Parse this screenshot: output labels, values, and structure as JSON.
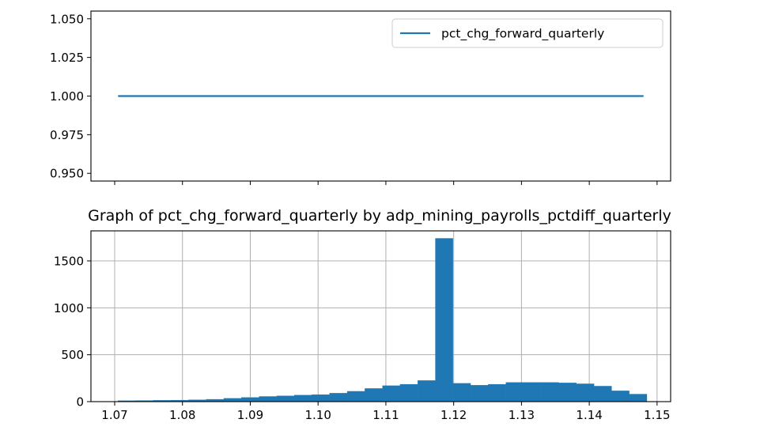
{
  "chart_data": [
    {
      "type": "line",
      "title": "",
      "xlabel": "",
      "ylabel": "",
      "x": [
        1.0705,
        1.148
      ],
      "xlim": [
        1.0665,
        1.152
      ],
      "ylim": [
        0.945,
        1.055
      ],
      "yticks": [
        "0.950",
        "0.975",
        "1.000",
        "1.025",
        "1.050"
      ],
      "ytick_values": [
        0.95,
        0.975,
        1.0,
        1.025,
        1.05
      ],
      "xticks_labeled": false,
      "xtick_values": [
        1.07,
        1.08,
        1.09,
        1.1,
        1.11,
        1.12,
        1.13,
        1.14,
        1.15
      ],
      "grid": false,
      "legend": "upper-right",
      "series": [
        {
          "name": "pct_chg_forward_quarterly",
          "color": "#1f77b4",
          "values": [
            1.0,
            1.0
          ]
        }
      ]
    },
    {
      "type": "bar",
      "title": "Graph of pct_chg_forward_quarterly by adp_mining_payrolls_pctdiff_quarterly",
      "xlabel": "",
      "ylabel": "",
      "xlim": [
        1.0665,
        1.152
      ],
      "ylim": [
        0,
        1820
      ],
      "xticks": [
        "1.07",
        "1.08",
        "1.09",
        "1.10",
        "1.11",
        "1.12",
        "1.13",
        "1.14",
        "1.15"
      ],
      "xtick_values": [
        1.07,
        1.08,
        1.09,
        1.1,
        1.11,
        1.12,
        1.13,
        1.14,
        1.15
      ],
      "yticks": [
        "0",
        "500",
        "1000",
        "1500"
      ],
      "ytick_values": [
        0,
        500,
        1000,
        1500
      ],
      "grid": true,
      "color": "#1f77b4",
      "bin_edges": [
        1.0705,
        1.0731,
        1.0757,
        1.0783,
        1.0809,
        1.0835,
        1.0861,
        1.0887,
        1.0913,
        1.0939,
        1.0965,
        1.0991,
        1.1017,
        1.1043,
        1.1069,
        1.1095,
        1.1121,
        1.1147,
        1.1173,
        1.1199,
        1.1225,
        1.1251,
        1.1277,
        1.1303,
        1.1329,
        1.1355,
        1.1381,
        1.1407,
        1.1433,
        1.1459,
        1.1485
      ],
      "values": [
        10,
        12,
        14,
        16,
        20,
        25,
        35,
        45,
        55,
        62,
        70,
        75,
        90,
        110,
        140,
        170,
        185,
        225,
        1740,
        195,
        175,
        185,
        205,
        205,
        205,
        200,
        190,
        165,
        115,
        80
      ]
    }
  ]
}
